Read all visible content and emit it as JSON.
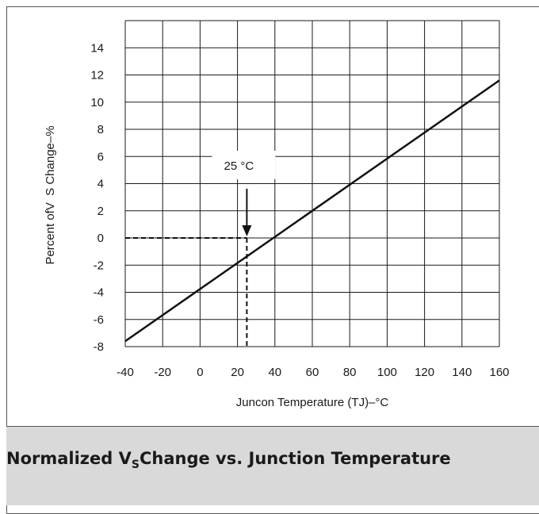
{
  "chart_data": {
    "type": "line",
    "title": "",
    "caption": {
      "before": "Normalized V",
      "subscript": "S",
      "after": "Change vs. Junction Temperature"
    },
    "xlabel": "Juncon Temperature (TJ)–°C",
    "ylabel": "Percent ofV  S Change–%",
    "xlim": [
      -40,
      160
    ],
    "ylim": [
      -8,
      16
    ],
    "x_ticks": [
      -40,
      -20,
      0,
      20,
      40,
      60,
      80,
      100,
      120,
      140,
      160
    ],
    "x_tick_labels": [
      "-40",
      "-20",
      "0",
      "20",
      "40",
      "60",
      "80",
      "100",
      "120",
      "140",
      "160"
    ],
    "y_ticks": [
      -8,
      -6,
      -4,
      -2,
      0,
      2,
      4,
      6,
      8,
      10,
      12,
      14
    ],
    "y_tick_labels": [
      "-8",
      "-6",
      "-4",
      "-2",
      "0",
      "2",
      "4",
      "6",
      "8",
      "10",
      "12",
      "14"
    ],
    "grid": true,
    "series": [
      {
        "x": [
          -40,
          160
        ],
        "y": [
          -7.6,
          11.6
        ]
      }
    ],
    "annotations": [
      {
        "text": "25 °C",
        "x": 25,
        "y": 0
      }
    ]
  }
}
